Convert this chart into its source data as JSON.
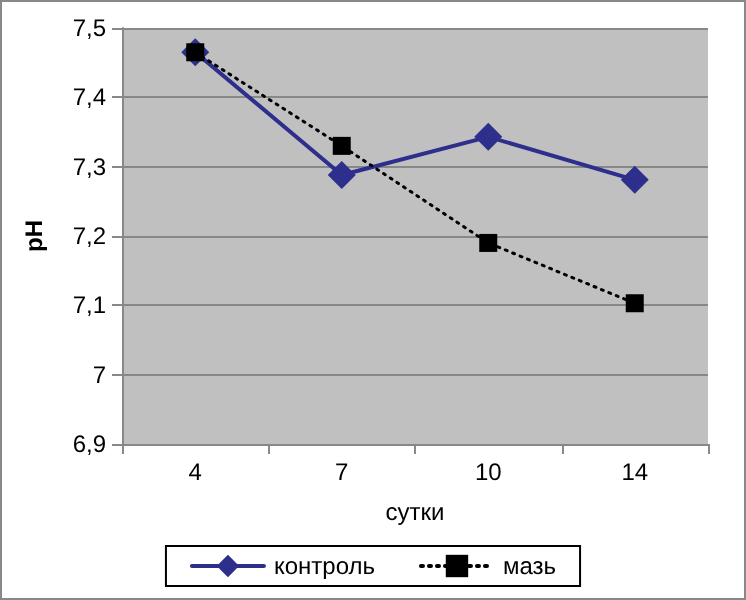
{
  "chart_data": {
    "type": "line",
    "xlabel": "сутки",
    "ylabel": "pH",
    "categories": [
      "4",
      "7",
      "10",
      "14"
    ],
    "series": [
      {
        "name": "контроль",
        "color": "#2e2e8c",
        "values": [
          7.465,
          7.288,
          7.343,
          7.281
        ],
        "marker": "diamond",
        "line_style": "solid"
      },
      {
        "name": "мазь",
        "color": "#000000",
        "values": [
          7.465,
          7.33,
          7.19,
          7.103
        ],
        "marker": "square",
        "line_style": "dotted"
      }
    ],
    "ylim": [
      6.9,
      7.5
    ],
    "yticks": [
      {
        "value": 6.9,
        "label": "6,9"
      },
      {
        "value": 7,
        "label": "7"
      },
      {
        "value": 7.1,
        "label": "7,1"
      },
      {
        "value": 7.2,
        "label": "7,2"
      },
      {
        "value": 7.3,
        "label": "7,3"
      },
      {
        "value": 7.4,
        "label": "7,4"
      },
      {
        "value": 7.5,
        "label": "7,5"
      }
    ],
    "grid": "y",
    "legend": "bottom"
  }
}
